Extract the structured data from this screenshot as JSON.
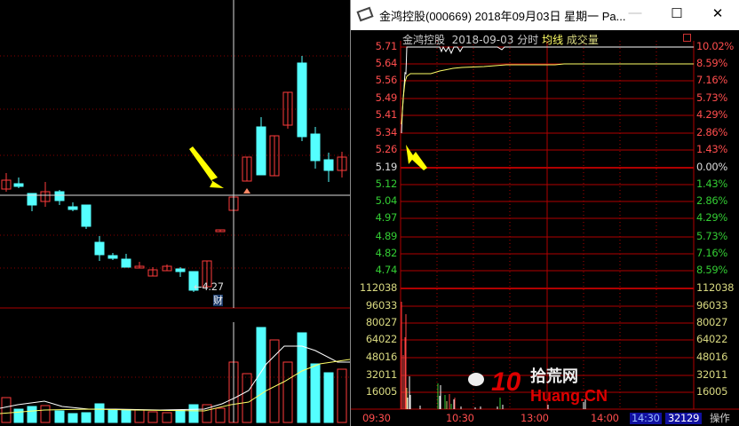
{
  "kline": {
    "low_marker": "←4.27",
    "finance_badge": "财"
  },
  "window": {
    "title": "金鸿控股(000669) 2018年09月03日 星期一 Pa...",
    "icon": "stock-app-icon",
    "minimize": "—",
    "maximize": "☐",
    "close": "✕"
  },
  "chart_header": {
    "name": "金鸿控股",
    "date": "2018-09-03",
    "mode": "分时",
    "avg_label": "均线",
    "vol_label": "成交量",
    "restore_icon": "restore-icon"
  },
  "price_axis": {
    "left": [
      "5.71",
      "5.64",
      "5.56",
      "5.49",
      "5.41",
      "5.34",
      "5.26",
      "5.19",
      "5.12",
      "5.04",
      "4.97",
      "4.89",
      "4.82",
      "4.74"
    ],
    "right": [
      "10.02%",
      "8.59%",
      "7.16%",
      "5.73%",
      "4.29%",
      "2.86%",
      "1.43%",
      "0.00%",
      "1.43%",
      "2.86%",
      "4.29%",
      "5.73%",
      "7.16%",
      "8.59%"
    ]
  },
  "volume_axis": [
    "112038",
    "96033",
    "80027",
    "64022",
    "48016",
    "32011",
    "16005"
  ],
  "time_axis": [
    "09:30",
    "10:30",
    "13:00",
    "14:00"
  ],
  "cursor_volume": "32129",
  "status": {
    "time": "14:30",
    "action": "操作"
  },
  "watermark": {
    "text": "拾荒网",
    "logo": "10 Huang.CN",
    "icon": "wechat-icon"
  },
  "colors": {
    "up": "#ff3b3b",
    "down": "#54ffff",
    "grid": "#b00000",
    "price_line": "#ffffff",
    "avg_line": "#ffff66",
    "arrow": "#ffff00"
  }
}
